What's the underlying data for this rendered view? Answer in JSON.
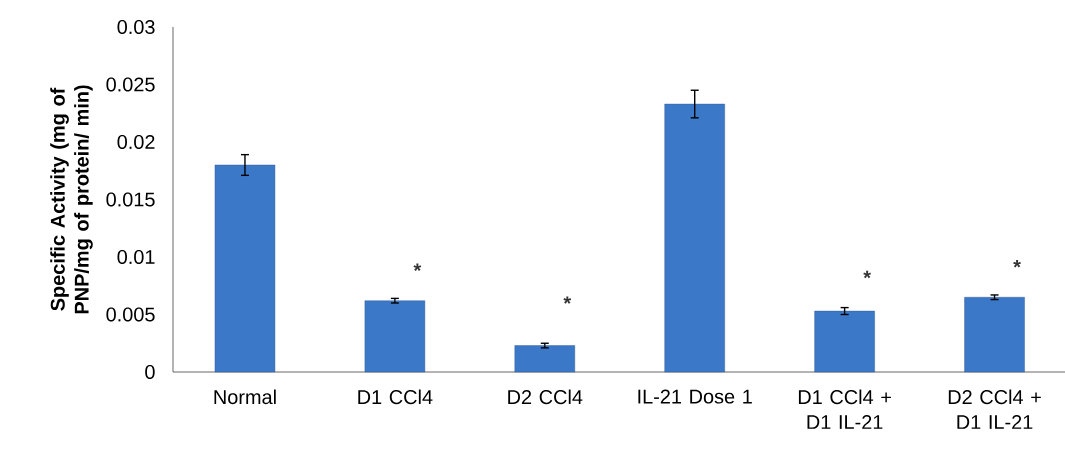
{
  "chart_data": {
    "type": "bar",
    "ylabel": "Specific Activity (mg of PNP/mg of protein/ min)",
    "categories": [
      "Normal",
      "D1 CCl4",
      "D2 CCl4",
      "IL-21 Dose 1",
      "D1 CCl4 + D1 IL-21",
      "D2 CCl4 + D1 IL-21"
    ],
    "values": [
      0.018,
      0.0062,
      0.0023,
      0.0233,
      0.0053,
      0.0065
    ],
    "errors": [
      0.0009,
      0.0002,
      0.0002,
      0.0012,
      0.0003,
      0.0002
    ],
    "color": "#3c78c8",
    "ylim": [
      0,
      0.03
    ],
    "yticks": [
      0,
      0.005,
      0.01,
      0.015,
      0.02,
      0.025,
      0.03
    ],
    "annotations": [
      "*",
      "*",
      "*",
      "*"
    ]
  }
}
